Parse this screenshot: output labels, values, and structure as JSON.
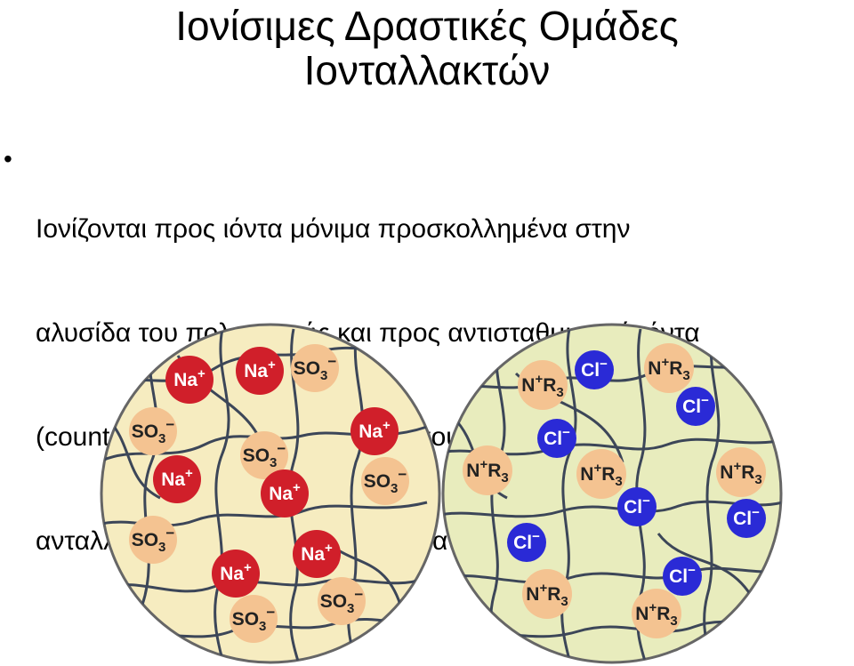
{
  "title": {
    "line1": "Ιονίσιμες Δραστικές Ομάδες",
    "line2": "Ιονταλλακτών"
  },
  "bullet": {
    "marker": "•",
    "lines": [
      "Ιονίζονται προς ιόντα μόνιμα προσκολλημένα στην",
      "αλυσίδα του πολυμερούς και προς αντισταθμιστικά ιόντα",
      "(counter ions) στην υγρή φάση, που μπορούν να",
      "ανταλλαγούν  αντιστρεπτά με ιόντα ομώνυμου φορτίου"
    ]
  },
  "colors": {
    "cation_resin_fill": "#f6ecc0",
    "anion_resin_fill": "#e8ecbd",
    "network_line": "#3c4658",
    "na_fill": "#d01f2a",
    "cl_fill": "#2a2ad6",
    "fixed_group_fill": "#f4c391",
    "ion_text_light": "#ffffff",
    "ion_text_dark": "#222222"
  },
  "labels": {
    "na": {
      "base": "Na",
      "sup": "+"
    },
    "so3": {
      "base": "SO",
      "sub": "3",
      "sup": "−"
    },
    "cl": {
      "base": "Cl",
      "sup": "−"
    },
    "nr3": {
      "base1": "N",
      "sup": "+",
      "base2": "R",
      "sub": "3"
    }
  },
  "left_sphere_ions": [
    "so3",
    "na",
    "na",
    "so3",
    "so3",
    "na",
    "so3",
    "na",
    "so3",
    "na",
    "so3",
    "na",
    "na",
    "so3",
    "so3"
  ],
  "right_sphere_ions": [
    "nr3",
    "cl",
    "nr3",
    "cl",
    "cl",
    "nr3",
    "nr3",
    "nr3",
    "cl",
    "cl",
    "cl",
    "nr3",
    "cl",
    "nr3",
    "nr3"
  ]
}
